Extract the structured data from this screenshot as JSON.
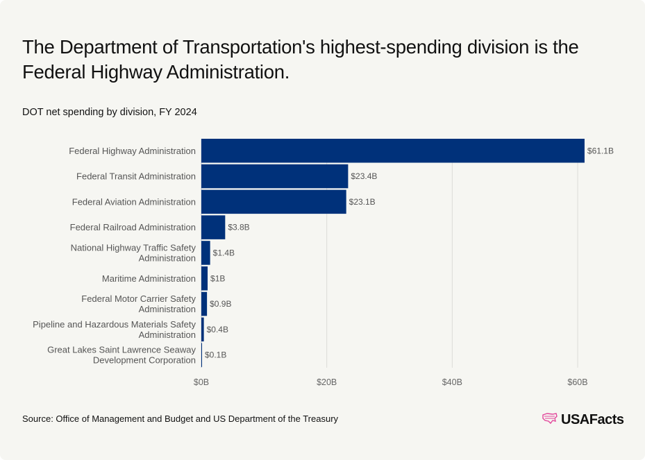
{
  "header": {
    "title": "The Department of Transportation's highest-spending division is the Federal Highway Administration.",
    "subtitle": "DOT net spending by division, FY 2024"
  },
  "footer": {
    "source": "Source: Office of Management and Budget and US Department of the Treasury",
    "logo_text": "USAFacts",
    "logo_icon": "usa-map-icon"
  },
  "colors": {
    "bar": "#00317a",
    "grid": "#dcdcd8",
    "logo_accent": "#e2459a",
    "background": "#f6f6f2"
  },
  "chart_data": {
    "type": "bar",
    "orientation": "horizontal",
    "title": "DOT net spending by division, FY 2024",
    "xlabel": "",
    "ylabel": "",
    "xlim": [
      0,
      65
    ],
    "grid": true,
    "unit": "billions USD",
    "categories": [
      [
        "Federal Highway Administration"
      ],
      [
        "Federal Transit Administration"
      ],
      [
        "Federal Aviation Administration"
      ],
      [
        "Federal Railroad Administration"
      ],
      [
        "National Highway Traffic Safety",
        "Administration"
      ],
      [
        "Maritime Administration"
      ],
      [
        "Federal Motor Carrier Safety",
        "Administration"
      ],
      [
        "Pipeline and Hazardous Materials Safety",
        "Administration"
      ],
      [
        "Great Lakes Saint Lawrence Seaway",
        "Development Corporation"
      ]
    ],
    "values": [
      61.1,
      23.4,
      23.1,
      3.8,
      1.4,
      1.0,
      0.9,
      0.4,
      0.1
    ],
    "value_labels": [
      "$61.1B",
      "$23.4B",
      "$23.1B",
      "$3.8B",
      "$1.4B",
      "$1B",
      "$0.9B",
      "$0.4B",
      "$0.1B"
    ],
    "ticks": [
      0,
      20,
      40,
      60
    ],
    "tick_labels": [
      "$0B",
      "$20B",
      "$40B",
      "$60B"
    ]
  }
}
